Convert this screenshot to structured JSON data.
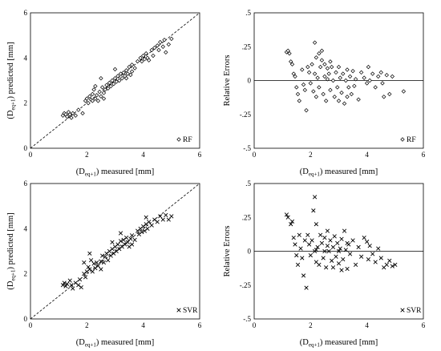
{
  "chart_data": [
    {
      "id": "rf_pred",
      "type": "scatter",
      "marker": "diamond",
      "xlim": [
        0,
        6
      ],
      "ylim": [
        0,
        6
      ],
      "xticks": [
        0,
        2,
        4,
        6
      ],
      "yticks": [
        0,
        2,
        4,
        6
      ],
      "xlabel": {
        "pre": "(D",
        "sub": "eq+1",
        "post": ") measured [mm]"
      },
      "ylabel": {
        "pre": "(D",
        "sub": "eq+1",
        "post": ") predicted [mm]"
      },
      "legend": "RF",
      "legend_position": "bottom-right",
      "reference": "identity",
      "points": [
        [
          1.15,
          1.45
        ],
        [
          1.2,
          1.55
        ],
        [
          1.25,
          1.5
        ],
        [
          1.3,
          1.4
        ],
        [
          1.35,
          1.6
        ],
        [
          1.4,
          1.5
        ],
        [
          1.45,
          1.35
        ],
        [
          1.5,
          1.55
        ],
        [
          1.6,
          1.45
        ],
        [
          1.7,
          1.7
        ],
        [
          1.85,
          1.55
        ],
        [
          1.95,
          2.1
        ],
        [
          2.0,
          2.2
        ],
        [
          2.05,
          2.0
        ],
        [
          2.1,
          2.3
        ],
        [
          2.15,
          2.15
        ],
        [
          2.2,
          2.4
        ],
        [
          2.2,
          2.1
        ],
        [
          2.25,
          2.6
        ],
        [
          2.3,
          2.2
        ],
        [
          2.35,
          2.35
        ],
        [
          2.4,
          2.1
        ],
        [
          2.45,
          2.5
        ],
        [
          2.5,
          2.3
        ],
        [
          2.55,
          2.7
        ],
        [
          2.6,
          2.45
        ],
        [
          2.65,
          2.6
        ],
        [
          2.7,
          2.8
        ],
        [
          2.75,
          2.65
        ],
        [
          2.8,
          2.9
        ],
        [
          2.85,
          2.75
        ],
        [
          2.9,
          3.0
        ],
        [
          2.95,
          2.85
        ],
        [
          3.0,
          3.1
        ],
        [
          3.05,
          2.95
        ],
        [
          3.1,
          3.2
        ],
        [
          3.15,
          3.0
        ],
        [
          3.2,
          3.3
        ],
        [
          3.25,
          3.1
        ],
        [
          3.3,
          3.35
        ],
        [
          3.35,
          3.2
        ],
        [
          3.4,
          3.45
        ],
        [
          3.45,
          3.3
        ],
        [
          3.5,
          3.6
        ],
        [
          3.55,
          3.25
        ],
        [
          3.6,
          3.7
        ],
        [
          3.7,
          3.55
        ],
        [
          3.8,
          3.85
        ],
        [
          3.9,
          4.0
        ],
        [
          3.95,
          3.85
        ],
        [
          4.0,
          4.1
        ],
        [
          4.05,
          3.95
        ],
        [
          4.1,
          4.2
        ],
        [
          4.15,
          4.0
        ],
        [
          4.2,
          3.9
        ],
        [
          4.3,
          4.35
        ],
        [
          4.35,
          4.1
        ],
        [
          4.4,
          4.45
        ],
        [
          4.5,
          4.55
        ],
        [
          4.55,
          4.35
        ],
        [
          4.6,
          4.7
        ],
        [
          4.7,
          4.5
        ],
        [
          4.75,
          4.8
        ],
        [
          4.8,
          4.25
        ],
        [
          4.9,
          4.6
        ],
        [
          5.0,
          4.85
        ],
        [
          2.5,
          3.1
        ],
        [
          3.0,
          3.5
        ],
        [
          2.6,
          2.2
        ],
        [
          3.4,
          3.1
        ],
        [
          2.3,
          2.75
        ],
        [
          3.6,
          3.4
        ]
      ]
    },
    {
      "id": "rf_err",
      "type": "scatter",
      "marker": "diamond",
      "xlim": [
        0,
        6
      ],
      "ylim": [
        -0.5,
        0.5
      ],
      "xticks": [
        0,
        2,
        4,
        6
      ],
      "yticks": [
        -0.5,
        -0.25,
        0,
        0.25,
        0.5
      ],
      "xlabel": {
        "pre": "(D",
        "sub": "eq+1",
        "post": ") measured [mm]"
      },
      "ylabel": {
        "pre": "Relative Errors",
        "sub": "",
        "post": ""
      },
      "legend": "RF",
      "legend_position": "bottom-right",
      "reference": "zero",
      "points": [
        [
          1.15,
          0.21
        ],
        [
          1.2,
          0.22
        ],
        [
          1.25,
          0.2
        ],
        [
          1.3,
          0.14
        ],
        [
          1.35,
          0.12
        ],
        [
          1.4,
          0.05
        ],
        [
          1.45,
          0.03
        ],
        [
          1.5,
          -0.05
        ],
        [
          1.55,
          -0.1
        ],
        [
          1.6,
          -0.15
        ],
        [
          1.7,
          0.08
        ],
        [
          1.75,
          -0.03
        ],
        [
          1.8,
          -0.07
        ],
        [
          1.85,
          -0.22
        ],
        [
          1.9,
          0.1
        ],
        [
          1.95,
          0.06
        ],
        [
          2.0,
          -0.02
        ],
        [
          2.05,
          0.12
        ],
        [
          2.1,
          -0.08
        ],
        [
          2.15,
          0.05
        ],
        [
          2.15,
          0.28
        ],
        [
          2.2,
          0.17
        ],
        [
          2.2,
          -0.12
        ],
        [
          2.25,
          0.02
        ],
        [
          2.3,
          -0.05
        ],
        [
          2.35,
          0.1
        ],
        [
          2.4,
          0.15
        ],
        [
          2.45,
          -0.1
        ],
        [
          2.5,
          0.03
        ],
        [
          2.55,
          -0.15
        ],
        [
          2.6,
          0.09
        ],
        [
          2.65,
          0.05
        ],
        [
          2.7,
          -0.07
        ],
        [
          2.75,
          0.1
        ],
        [
          2.8,
          0.0
        ],
        [
          2.85,
          -0.12
        ],
        [
          2.9,
          0.06
        ],
        [
          2.95,
          -0.05
        ],
        [
          3.0,
          0.1
        ],
        [
          3.05,
          0.02
        ],
        [
          3.1,
          -0.09
        ],
        [
          3.15,
          0.05
        ],
        [
          3.2,
          -0.17
        ],
        [
          3.25,
          0.0
        ],
        [
          3.3,
          0.08
        ],
        [
          3.35,
          -0.05
        ],
        [
          3.4,
          0.03
        ],
        [
          3.45,
          -0.1
        ],
        [
          3.5,
          0.07
        ],
        [
          3.55,
          -0.04
        ],
        [
          3.6,
          0.01
        ],
        [
          3.7,
          -0.14
        ],
        [
          3.8,
          0.06
        ],
        [
          3.9,
          0.02
        ],
        [
          4.0,
          -0.02
        ],
        [
          4.05,
          0.1
        ],
        [
          4.1,
          0.0
        ],
        [
          4.2,
          0.05
        ],
        [
          4.3,
          -0.05
        ],
        [
          4.4,
          0.03
        ],
        [
          4.5,
          0.06
        ],
        [
          4.55,
          -0.02
        ],
        [
          4.6,
          -0.12
        ],
        [
          4.7,
          0.04
        ],
        [
          4.8,
          -0.1
        ],
        [
          4.9,
          0.03
        ],
        [
          5.3,
          -0.08
        ],
        [
          2.4,
          0.22
        ],
        [
          2.5,
          0.12
        ],
        [
          2.6,
          0.01
        ],
        [
          2.7,
          0.14
        ],
        [
          3.0,
          -0.15
        ],
        [
          3.3,
          -0.12
        ],
        [
          2.3,
          0.2
        ]
      ]
    },
    {
      "id": "svr_pred",
      "type": "scatter",
      "marker": "cross",
      "xlim": [
        0,
        6
      ],
      "ylim": [
        0,
        6
      ],
      "xticks": [
        0,
        2,
        4,
        6
      ],
      "yticks": [
        0,
        2,
        4,
        6
      ],
      "xlabel": {
        "pre": "(D",
        "sub": "eq+1",
        "post": ") measured [mm]"
      },
      "ylabel": {
        "pre": "(D",
        "sub": "eq+1",
        "post": ") predicted [mm]"
      },
      "legend": "SVR",
      "legend_position": "bottom-right",
      "reference": "identity",
      "points": [
        [
          1.15,
          1.5
        ],
        [
          1.2,
          1.6
        ],
        [
          1.25,
          1.45
        ],
        [
          1.3,
          1.55
        ],
        [
          1.4,
          1.7
        ],
        [
          1.45,
          1.5
        ],
        [
          1.5,
          1.35
        ],
        [
          1.6,
          1.6
        ],
        [
          1.7,
          1.5
        ],
        [
          1.75,
          1.75
        ],
        [
          1.8,
          1.4
        ],
        [
          1.9,
          2.0
        ],
        [
          1.95,
          1.85
        ],
        [
          2.0,
          2.1
        ],
        [
          2.05,
          2.3
        ],
        [
          2.1,
          2.2
        ],
        [
          2.15,
          2.6
        ],
        [
          2.2,
          2.1
        ],
        [
          2.25,
          2.45
        ],
        [
          2.3,
          2.25
        ],
        [
          2.35,
          2.5
        ],
        [
          2.4,
          2.35
        ],
        [
          2.5,
          2.55
        ],
        [
          2.55,
          2.8
        ],
        [
          2.6,
          2.5
        ],
        [
          2.65,
          2.75
        ],
        [
          2.7,
          2.9
        ],
        [
          2.75,
          2.6
        ],
        [
          2.8,
          3.0
        ],
        [
          2.85,
          2.8
        ],
        [
          2.9,
          3.1
        ],
        [
          2.95,
          2.9
        ],
        [
          3.0,
          3.2
        ],
        [
          3.05,
          3.0
        ],
        [
          3.1,
          3.3
        ],
        [
          3.15,
          3.1
        ],
        [
          3.2,
          3.45
        ],
        [
          3.25,
          3.2
        ],
        [
          3.3,
          3.5
        ],
        [
          3.35,
          3.3
        ],
        [
          3.4,
          3.6
        ],
        [
          3.45,
          3.4
        ],
        [
          3.5,
          3.2
        ],
        [
          3.55,
          3.55
        ],
        [
          3.6,
          3.7
        ],
        [
          3.7,
          3.5
        ],
        [
          3.8,
          3.9
        ],
        [
          3.85,
          3.75
        ],
        [
          3.9,
          4.0
        ],
        [
          3.95,
          3.85
        ],
        [
          4.0,
          4.1
        ],
        [
          4.05,
          3.9
        ],
        [
          4.1,
          4.2
        ],
        [
          4.15,
          4.0
        ],
        [
          4.2,
          4.3
        ],
        [
          4.3,
          4.15
        ],
        [
          4.4,
          4.4
        ],
        [
          4.5,
          4.3
        ],
        [
          4.6,
          4.55
        ],
        [
          4.7,
          4.4
        ],
        [
          4.8,
          4.6
        ],
        [
          4.9,
          4.4
        ],
        [
          5.0,
          4.55
        ],
        [
          2.1,
          2.9
        ],
        [
          3.2,
          3.8
        ],
        [
          2.5,
          2.2
        ],
        [
          3.6,
          3.3
        ],
        [
          1.9,
          2.5
        ],
        [
          2.9,
          3.4
        ],
        [
          4.1,
          4.5
        ]
      ]
    },
    {
      "id": "svr_err",
      "type": "scatter",
      "marker": "cross",
      "xlim": [
        0,
        6
      ],
      "ylim": [
        -0.5,
        0.5
      ],
      "xticks": [
        0,
        2,
        4,
        6
      ],
      "yticks": [
        -0.5,
        -0.25,
        0,
        0.25,
        0.5
      ],
      "xlabel": {
        "pre": "(D",
        "sub": "eq+1",
        "post": ") measured [mm]"
      },
      "ylabel": {
        "pre": "Relative Errors",
        "sub": "",
        "post": ""
      },
      "legend": "SVR",
      "legend_position": "bottom-right",
      "reference": "zero",
      "points": [
        [
          1.15,
          0.27
        ],
        [
          1.2,
          0.25
        ],
        [
          1.3,
          0.2
        ],
        [
          1.35,
          0.22
        ],
        [
          1.4,
          0.1
        ],
        [
          1.45,
          0.05
        ],
        [
          1.5,
          -0.03
        ],
        [
          1.55,
          -0.1
        ],
        [
          1.6,
          0.12
        ],
        [
          1.65,
          0.02
        ],
        [
          1.7,
          -0.05
        ],
        [
          1.75,
          -0.18
        ],
        [
          1.8,
          0.08
        ],
        [
          1.85,
          -0.27
        ],
        [
          1.9,
          0.12
        ],
        [
          1.95,
          0.05
        ],
        [
          2.0,
          -0.03
        ],
        [
          2.05,
          0.08
        ],
        [
          2.1,
          0.3
        ],
        [
          2.15,
          0.4
        ],
        [
          2.2,
          0.2
        ],
        [
          2.2,
          -0.08
        ],
        [
          2.25,
          0.03
        ],
        [
          2.3,
          -0.1
        ],
        [
          2.35,
          0.12
        ],
        [
          2.4,
          0.06
        ],
        [
          2.45,
          -0.05
        ],
        [
          2.5,
          0.1
        ],
        [
          2.55,
          -0.12
        ],
        [
          2.6,
          0.04
        ],
        [
          2.65,
          0.0
        ],
        [
          2.7,
          0.08
        ],
        [
          2.75,
          -0.07
        ],
        [
          2.8,
          0.03
        ],
        [
          2.85,
          0.11
        ],
        [
          2.9,
          -0.04
        ],
        [
          2.95,
          0.06
        ],
        [
          3.0,
          -0.09
        ],
        [
          3.05,
          0.02
        ],
        [
          3.1,
          0.09
        ],
        [
          3.15,
          -0.06
        ],
        [
          3.2,
          0.15
        ],
        [
          3.25,
          0.01
        ],
        [
          3.3,
          -0.13
        ],
        [
          3.35,
          0.05
        ],
        [
          3.4,
          -0.02
        ],
        [
          3.5,
          0.08
        ],
        [
          3.6,
          -0.1
        ],
        [
          3.7,
          0.03
        ],
        [
          3.8,
          -0.04
        ],
        [
          3.9,
          0.1
        ],
        [
          4.0,
          0.07
        ],
        [
          4.05,
          -0.06
        ],
        [
          4.1,
          0.04
        ],
        [
          4.2,
          -0.02
        ],
        [
          4.3,
          -0.08
        ],
        [
          4.4,
          0.02
        ],
        [
          4.5,
          -0.05
        ],
        [
          4.6,
          -0.12
        ],
        [
          4.7,
          -0.1
        ],
        [
          4.8,
          -0.07
        ],
        [
          4.9,
          -0.11
        ],
        [
          5.0,
          -0.1
        ],
        [
          2.5,
          0.0
        ],
        [
          2.6,
          0.15
        ],
        [
          3.0,
          0.0
        ],
        [
          3.3,
          0.06
        ],
        [
          2.8,
          -0.12
        ],
        [
          3.1,
          -0.14
        ],
        [
          2.15,
          0.0
        ],
        [
          2.2,
          0.01
        ]
      ]
    }
  ]
}
